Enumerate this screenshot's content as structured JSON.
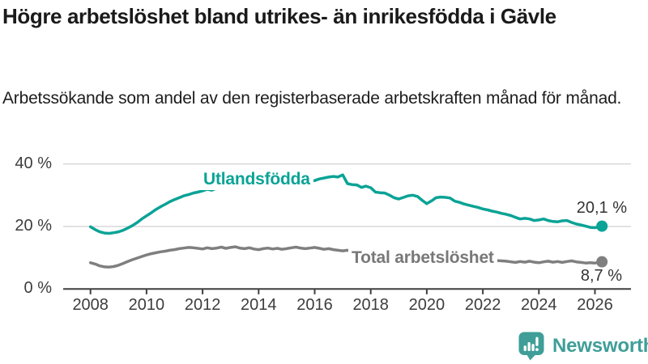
{
  "header": {
    "title": "Högre arbetslöshet bland utrikes- än inrikesfödda i Gävle",
    "subtitle": "Arbetssökande som andel av den registerbaserade arbetskraften månad för månad."
  },
  "colors": {
    "series_foreign_born": "#0aa396",
    "series_total": "#7f7f7f",
    "brand_teal": "#3f9e98",
    "grid": "#d9d9d9",
    "axis": "#3f3f3f",
    "axis_text": "#3d3d3d",
    "end_label_text": "#333333",
    "title_text": "#1a1a1a"
  },
  "chart_data": {
    "type": "line",
    "title": "Högre arbetslöshet bland utrikes- än inrikesfödda i Gävle",
    "subtitle": "Arbetssökande som andel av den registerbaserade arbetskraften månad för månad.",
    "xlabel": "",
    "ylabel": "",
    "ylim": [
      0,
      40
    ],
    "xlim": [
      2008,
      2026.6
    ],
    "grid": "horizontal",
    "legend_position": "inline-labels",
    "y_ticks": [
      {
        "value": 40,
        "label": "40 %"
      },
      {
        "value": 20,
        "label": "20 %"
      },
      {
        "value": 0,
        "label": "0 %"
      }
    ],
    "x_ticks": [
      {
        "value": 2008,
        "label": "2008"
      },
      {
        "value": 2010,
        "label": "2010"
      },
      {
        "value": 2012,
        "label": "2012"
      },
      {
        "value": 2014,
        "label": "2014"
      },
      {
        "value": 2016,
        "label": "2016"
      },
      {
        "value": 2018,
        "label": "2018"
      },
      {
        "value": 2020,
        "label": "2020"
      },
      {
        "value": 2022,
        "label": "2022"
      },
      {
        "value": 2024,
        "label": "2024"
      },
      {
        "value": 2026,
        "label": "2026"
      }
    ],
    "x": [
      2008,
      2008.17,
      2008.33,
      2008.5,
      2008.67,
      2008.83,
      2009,
      2009.17,
      2009.33,
      2009.5,
      2009.67,
      2009.83,
      2010,
      2010.17,
      2010.33,
      2010.5,
      2010.67,
      2010.83,
      2011,
      2011.17,
      2011.33,
      2011.5,
      2011.67,
      2011.83,
      2012,
      2012.17,
      2012.33,
      2012.5,
      2012.67,
      2012.83,
      2013,
      2013.17,
      2013.33,
      2013.5,
      2013.67,
      2013.83,
      2014,
      2014.17,
      2014.33,
      2014.5,
      2014.67,
      2014.83,
      2015,
      2015.17,
      2015.33,
      2015.5,
      2015.67,
      2015.83,
      2016,
      2016.17,
      2016.33,
      2016.5,
      2016.67,
      2016.83,
      2017,
      2017.17,
      2017.33,
      2017.5,
      2017.67,
      2017.83,
      2018,
      2018.17,
      2018.33,
      2018.5,
      2018.67,
      2018.83,
      2019,
      2019.17,
      2019.33,
      2019.5,
      2019.67,
      2019.83,
      2020,
      2020.17,
      2020.33,
      2020.5,
      2020.67,
      2020.83,
      2021,
      2021.17,
      2021.33,
      2021.5,
      2021.67,
      2021.83,
      2022,
      2022.17,
      2022.33,
      2022.5,
      2022.67,
      2022.83,
      2023,
      2023.17,
      2023.33,
      2023.5,
      2023.67,
      2023.83,
      2024,
      2024.17,
      2024.33,
      2024.5,
      2024.67,
      2024.83,
      2025,
      2025.17,
      2025.33,
      2025.5,
      2025.67,
      2025.83,
      2026,
      2026.25
    ],
    "series": [
      {
        "name": "Utlandsfödda",
        "color": "#0aa396",
        "end_label": "20,1 %",
        "end_value": 20.1,
        "values": [
          19.9,
          19.0,
          18.3,
          17.9,
          17.8,
          18.0,
          18.3,
          18.8,
          19.5,
          20.3,
          21.3,
          22.4,
          23.4,
          24.4,
          25.4,
          26.3,
          27.1,
          27.9,
          28.6,
          29.2,
          29.8,
          30.2,
          30.7,
          31.0,
          31.4,
          31.9,
          31.6,
          32.2,
          32.6,
          32.3,
          32.8,
          33.1,
          32.8,
          33.2,
          33.5,
          33.2,
          33.6,
          33.9,
          33.6,
          34.0,
          34.2,
          33.9,
          34.2,
          34.5,
          34.3,
          34.6,
          34.8,
          34.5,
          34.7,
          35.2,
          35.5,
          35.8,
          36.0,
          35.8,
          36.5,
          33.7,
          33.4,
          33.3,
          32.5,
          32.9,
          32.4,
          31.0,
          30.8,
          30.7,
          30.0,
          29.2,
          28.8,
          29.3,
          29.8,
          30.0,
          29.6,
          28.4,
          27.3,
          28.2,
          29.2,
          29.4,
          29.3,
          29.1,
          28.1,
          27.7,
          27.2,
          26.8,
          26.4,
          26.1,
          25.6,
          25.3,
          24.9,
          24.6,
          24.2,
          23.9,
          23.5,
          22.9,
          22.4,
          22.6,
          22.4,
          21.9,
          22.1,
          22.4,
          21.9,
          21.6,
          21.5,
          21.8,
          21.9,
          21.3,
          20.8,
          20.5,
          20.1,
          19.7,
          19.6,
          20.1
        ]
      },
      {
        "name": "Total arbetslöshet",
        "color": "#7f7f7f",
        "end_label": "8,7 %",
        "end_value": 8.7,
        "values": [
          8.4,
          8.0,
          7.4,
          7.1,
          7.0,
          7.2,
          7.6,
          8.2,
          8.8,
          9.4,
          9.9,
          10.4,
          10.9,
          11.3,
          11.6,
          11.9,
          12.1,
          12.4,
          12.6,
          12.9,
          13.1,
          13.3,
          13.2,
          13.0,
          12.8,
          13.2,
          12.9,
          13.1,
          13.4,
          13.0,
          13.3,
          13.5,
          13.1,
          12.9,
          13.2,
          12.8,
          12.6,
          12.9,
          13.1,
          12.8,
          13.0,
          12.7,
          12.9,
          13.2,
          13.4,
          13.1,
          12.9,
          13.1,
          13.3,
          13.0,
          12.7,
          12.9,
          12.6,
          12.4,
          12.2,
          12.4,
          12.1,
          11.9,
          11.7,
          11.5,
          11.2,
          11.0,
          10.8,
          10.7,
          10.6,
          10.5,
          10.3,
          10.4,
          10.5,
          10.6,
          10.5,
          10.4,
          10.3,
          10.9,
          11.5,
          11.7,
          11.6,
          11.4,
          11.2,
          11.0,
          10.7,
          10.4,
          10.2,
          10.0,
          9.7,
          9.5,
          9.3,
          9.1,
          9.0,
          8.9,
          8.7,
          8.5,
          8.8,
          8.6,
          8.9,
          8.6,
          8.4,
          8.7,
          8.9,
          8.6,
          8.8,
          8.5,
          8.8,
          9.0,
          8.7,
          8.5,
          8.3,
          8.4,
          8.3,
          8.7
        ]
      }
    ]
  },
  "footer": {
    "brand": "Newsworthy"
  }
}
